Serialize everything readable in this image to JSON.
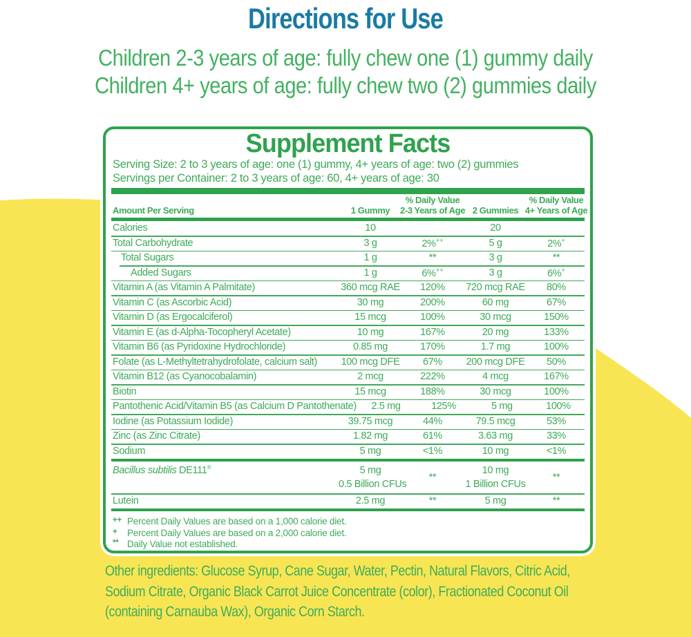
{
  "colors": {
    "teal_heading": "#1A7BA2",
    "green_text": "#3DAA58",
    "green_rule": "#2FA24D",
    "yellow_background": "#F8E554"
  },
  "directions": {
    "title": "Directions for Use",
    "line1": "Children 2-3 years of age: fully chew one (1) gummy daily",
    "line2": "Children 4+ years of age: fully chew two (2) gummies daily"
  },
  "supplement_facts": {
    "title": "Supplement Facts",
    "serving_size": "Serving Size: 2 to 3 years of age: one (1) gummy, 4+ years of age: two (2) gummies",
    "servings_per_container": "Servings per Container: 2 to 3 years of age: 60, 4+ years of age: 30",
    "columns": {
      "amount": "Amount Per Serving",
      "col1": "1 Gummy",
      "col2": [
        "% Daily Value",
        "2-3 Years of Age"
      ],
      "col3": "2 Gummies",
      "col4": [
        "% Daily Value",
        "4+ Years of Age"
      ]
    },
    "rows": [
      {
        "name": "Calories",
        "v1": "10",
        "dv1": "",
        "v2": "20",
        "dv2": "",
        "sep": "none"
      },
      {
        "name": "Total Carbohydrate",
        "v1": "3 g",
        "dv1": "2%",
        "dv1Sup": "++",
        "v2": "5 g",
        "dv2": "2%",
        "dv2Sup": "+",
        "sep": "thin"
      },
      {
        "name": "Total Sugars",
        "indent": 1,
        "v1": "1 g",
        "dv1": "**",
        "v2": "3 g",
        "dv2": "**",
        "sep": "thin"
      },
      {
        "name": "Added Sugars",
        "indent": 2,
        "v1": "1 g",
        "dv1": "6%",
        "dv1Sup": "++",
        "v2": "3 g",
        "dv2": "6%",
        "dv2Sup": "+",
        "sep": "thin",
        "sepIndent": 1
      },
      {
        "name": "Vitamin A (as Vitamin A Palmitate)",
        "v1": "360 mcg RAE",
        "dv1": "120%",
        "v2": "720 mcg RAE",
        "dv2": "80%",
        "sep": "thin"
      },
      {
        "name": "Vitamin C (as Ascorbic Acid)",
        "v1": "30 mg",
        "dv1": "200%",
        "v2": "60 mg",
        "dv2": "67%",
        "sep": "thin"
      },
      {
        "name": "Vitamin D (as Ergocalciferol)",
        "v1": "15 mcg",
        "dv1": "100%",
        "v2": "30 mcg",
        "dv2": "150%",
        "sep": "thin"
      },
      {
        "name": "Vitamin E (as d-Alpha-Tocopheryl Acetate)",
        "v1": "10 mg",
        "dv1": "167%",
        "v2": "20 mg",
        "dv2": "133%",
        "sep": "thin"
      },
      {
        "name": "Vitamin B6 (as Pyridoxine Hydrochloride)",
        "v1": "0.85 mg",
        "dv1": "170%",
        "v2": "1.7 mg",
        "dv2": "100%",
        "sep": "thin"
      },
      {
        "name": "Folate (as L-Methyltetrahydrofolate, calcium salt)",
        "v1": "100 mcg DFE",
        "dv1": "67%",
        "v2": "200 mcg DFE",
        "dv2": "50%",
        "sep": "thin"
      },
      {
        "name": "Vitamin B12 (as Cyanocobalamin)",
        "v1": "2 mcg",
        "dv1": "222%",
        "v2": "4 mcg",
        "dv2": "167%",
        "sep": "thin"
      },
      {
        "name": "Biotin",
        "v1": "15 mcg",
        "dv1": "188%",
        "v2": "30 mcg",
        "dv2": "100%",
        "sep": "thin"
      },
      {
        "name": "Pantothenic Acid/Vitamin B5 (as Calcium D Pantothenate)",
        "v1": "2.5 mg",
        "dv1": "125%",
        "v2": "5 mg",
        "dv2": "100%",
        "sep": "thin"
      },
      {
        "name": "Iodine (as Potassium Iodide)",
        "v1": "39.75 mcg",
        "dv1": "44%",
        "v2": "79.5 mcg",
        "dv2": "53%",
        "sep": "thin"
      },
      {
        "name": "Zinc (as Zinc Citrate)",
        "v1": "1.82 mg",
        "dv1": "61%",
        "v2": "3.63 mg",
        "dv2": "33%",
        "sep": "thin"
      },
      {
        "name": "Sodium",
        "v1": "5 mg",
        "dv1": "<1%",
        "v2": "10 mg",
        "dv2": "<1%",
        "sep": "thin"
      },
      {
        "nameItalic": "Bacillus subtilis",
        "name": " DE111",
        "nameSup": "®",
        "v1": "5 mg",
        "v1b": "0.5 Billion CFUs",
        "dv1": "**",
        "v2": "10 mg",
        "v2b": "1 Billion CFUs",
        "dv2": "**",
        "sep": "thick",
        "tall": true
      },
      {
        "name": "Lutein",
        "v1": "2.5 mg",
        "dv1": "**",
        "v2": "5 mg",
        "dv2": "**",
        "sep": "thin"
      }
    ],
    "footnotes": [
      {
        "sym": "++",
        "text": "Percent Daily Values are based on a 1,000 calorie diet."
      },
      {
        "sym": "+",
        "text": "Percent Daily Values are based on a 2,000 calorie diet."
      },
      {
        "sym": "**",
        "text": "Daily Value not established."
      }
    ]
  },
  "other_ingredients": "Other ingredients: Glucose Syrup, Cane Sugar, Water, Pectin, Natural Flavors, Citric Acid, Sodium Citrate, Organic Black Carrot Juice Concentrate (color), Fractionated Coconut Oil (containing Carnauba Wax), Organic Corn Starch."
}
